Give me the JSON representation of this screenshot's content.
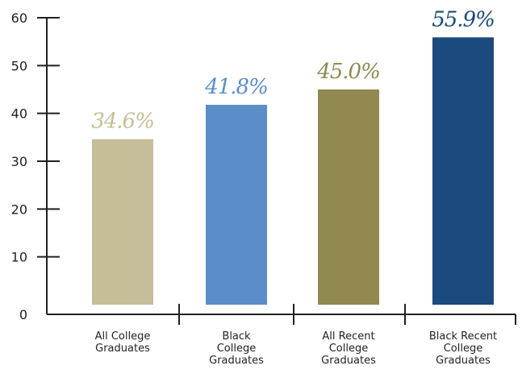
{
  "chart_data": {
    "type": "bar",
    "categories": [
      [
        "All College",
        "Graduates"
      ],
      [
        "Black",
        "College",
        "Graduates"
      ],
      [
        "All Recent",
        "College",
        "Graduates"
      ],
      [
        "Black Recent",
        "College",
        "Graduates"
      ]
    ],
    "values": [
      34.6,
      41.8,
      45.0,
      55.9
    ],
    "value_labels": [
      "34.6%",
      "41.8%",
      "45.0%",
      "55.9%"
    ],
    "bar_colors": [
      "#c6be98",
      "#5b8ec9",
      "#918950",
      "#1a4a7e"
    ],
    "label_colors": [
      "#c6be98",
      "#5b8ec9",
      "#918950",
      "#1a4a7e"
    ],
    "y_ticks": [
      0,
      10,
      20,
      30,
      40,
      50,
      60
    ],
    "ylim": [
      0,
      60
    ],
    "grid": false,
    "title": "",
    "xlabel": "",
    "ylabel": ""
  }
}
